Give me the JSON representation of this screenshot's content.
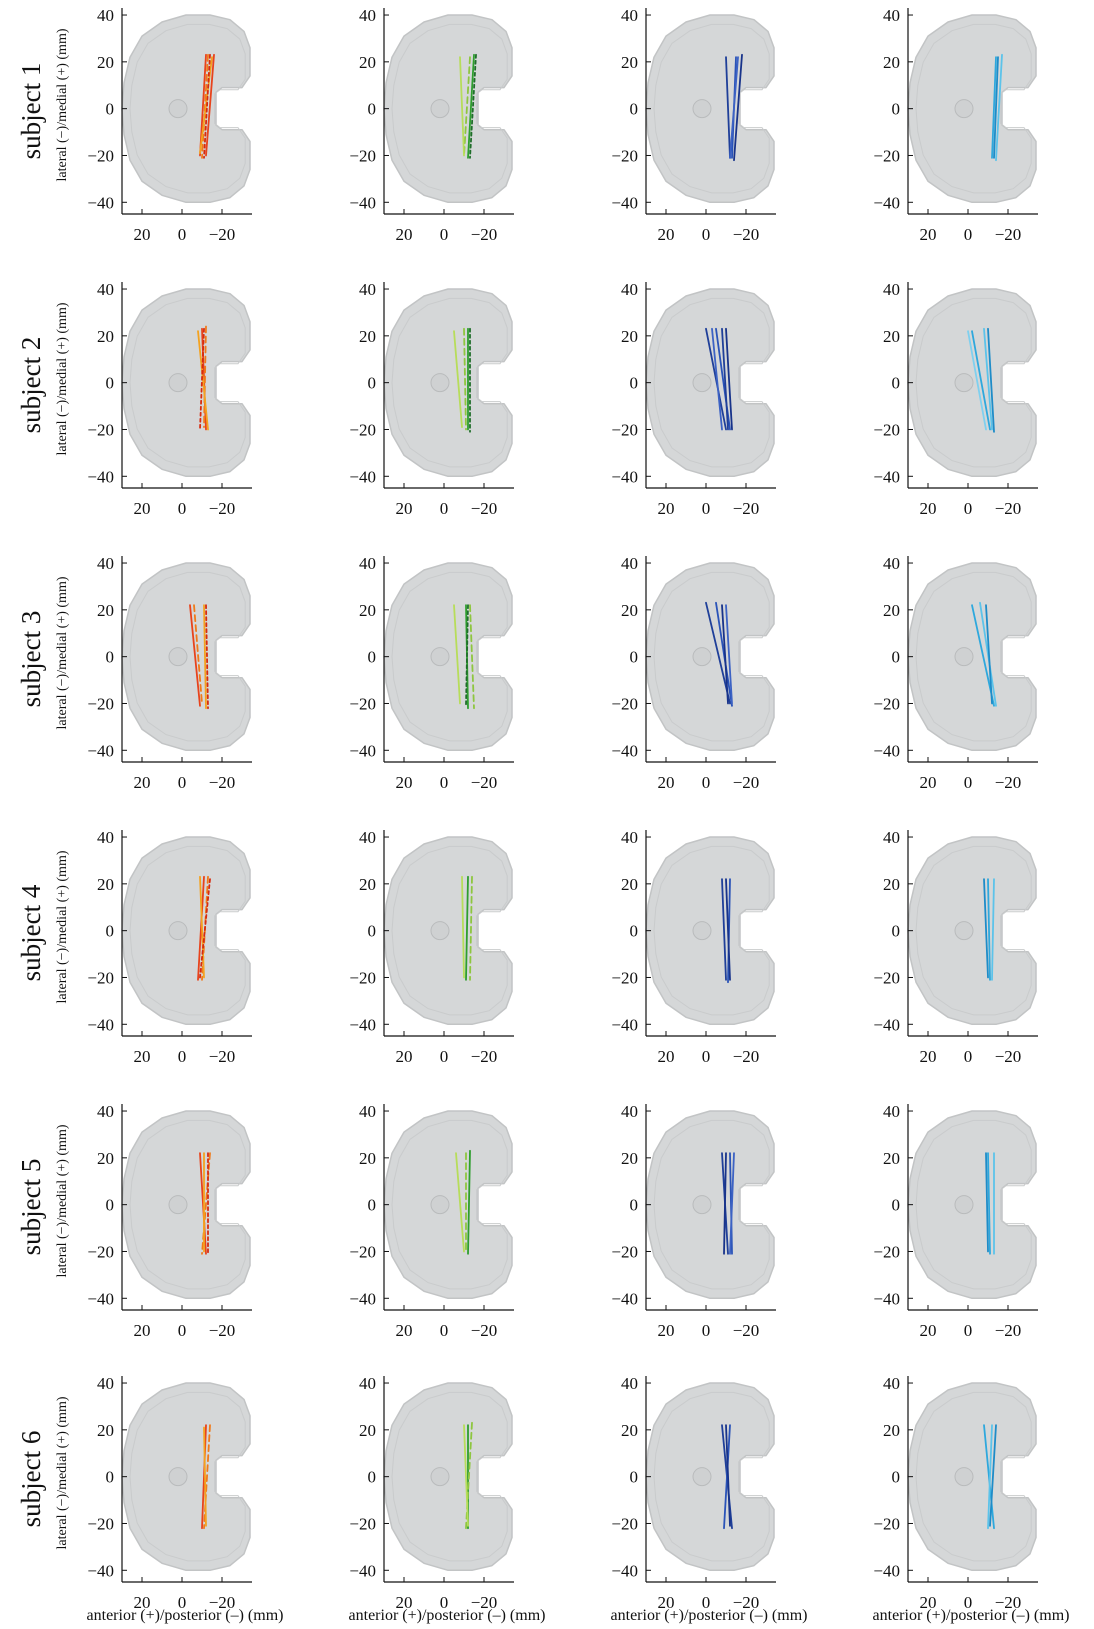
{
  "figure": {
    "row_labels": [
      "subject 1",
      "subject 2",
      "subject 3",
      "subject 4",
      "subject 5",
      "subject 6"
    ],
    "y_axis_label": "lateral (−)/medial (+) (mm)",
    "x_axis_label": "anterior (+)/posterior (–) (mm)",
    "x_tick_labels": [
      "20",
      "0",
      "−20"
    ],
    "y_tick_labels": [
      "40",
      "20",
      "0",
      "−20",
      "−40"
    ]
  },
  "colors": {
    "implant_fill": "#d5d7d8",
    "implant_edge": "#c2c4c5",
    "axis": "#111111",
    "col1": [
      "#e8431c",
      "#f07a1a",
      "#f4a21f",
      "#d62b10"
    ],
    "col2": [
      "#2e9e2e",
      "#8ec63f",
      "#b7dd5a",
      "#1f6e2a"
    ],
    "col3": [
      "#1f3f99",
      "#2a53b8",
      "#18338a",
      "#3c62c4"
    ],
    "col4": [
      "#2ea8dd",
      "#5cc3ea",
      "#1e8cc8",
      "#7fd0ef"
    ]
  },
  "chart_data": {
    "type": "line",
    "layout": "grid of 6 rows (subjects) by 4 columns; each panel shows line segments over a tibial implant outline",
    "xlim": [
      30,
      -35
    ],
    "ylim": [
      -45,
      43
    ],
    "x_reversed": true,
    "xticks": [
      20,
      0,
      -20
    ],
    "yticks": [
      40,
      20,
      0,
      -20,
      -40
    ],
    "xlabel": "anterior (+)/posterior (–) (mm)",
    "ylabel": "lateral (−)/medial (+) (mm)",
    "grid": false,
    "panels": [
      {
        "row": 1,
        "col": 1,
        "segments": [
          [
            -12,
            23,
            -9,
            -20
          ],
          [
            -13,
            23,
            -10,
            -21
          ],
          [
            -15,
            22,
            -9,
            -19
          ],
          [
            -14,
            23,
            -11,
            -21
          ],
          [
            -16,
            23,
            -12,
            -20
          ]
        ]
      },
      {
        "row": 1,
        "col": 2,
        "segments": [
          [
            -15,
            23,
            -12,
            -21
          ],
          [
            -13,
            22,
            -10,
            -20
          ],
          [
            -8,
            22,
            -10,
            -20
          ],
          [
            -16,
            23,
            -13,
            -21
          ]
        ]
      },
      {
        "row": 1,
        "col": 3,
        "segments": [
          [
            -10,
            22,
            -12,
            -21
          ],
          [
            -15,
            22,
            -13,
            -21
          ],
          [
            -18,
            23,
            -14,
            -22
          ],
          [
            -16,
            22,
            -12,
            -21
          ]
        ]
      },
      {
        "row": 1,
        "col": 4,
        "segments": [
          [
            -14,
            22,
            -12,
            -21
          ],
          [
            -17,
            23,
            -14,
            -22
          ],
          [
            -15,
            22,
            -13,
            -21
          ]
        ]
      },
      {
        "row": 2,
        "col": 1,
        "segments": [
          [
            -10,
            23,
            -12,
            -20
          ],
          [
            -12,
            24,
            -11,
            -19
          ],
          [
            -8,
            22,
            -13,
            -20
          ],
          [
            -11,
            23,
            -9,
            -20
          ]
        ]
      },
      {
        "row": 2,
        "col": 2,
        "segments": [
          [
            -12,
            23,
            -12,
            -20
          ],
          [
            -10,
            23,
            -11,
            -20
          ],
          [
            -5,
            22,
            -9,
            -19
          ],
          [
            -13,
            23,
            -13,
            -21
          ]
        ]
      },
      {
        "row": 2,
        "col": 3,
        "segments": [
          [
            0,
            23,
            -10,
            -20
          ],
          [
            -5,
            23,
            -12,
            -20
          ],
          [
            -10,
            23,
            -13,
            -20
          ],
          [
            -3,
            23,
            -8,
            -20
          ],
          [
            -8,
            23,
            -11,
            -20
          ]
        ]
      },
      {
        "row": 2,
        "col": 4,
        "segments": [
          [
            -2,
            22,
            -11,
            -20
          ],
          [
            -8,
            23,
            -12,
            -20
          ],
          [
            -10,
            23,
            -13,
            -21
          ],
          [
            0,
            22,
            -9,
            -20
          ]
        ]
      },
      {
        "row": 3,
        "col": 1,
        "segments": [
          [
            -4,
            22,
            -9,
            -21
          ],
          [
            -6,
            22,
            -10,
            -20
          ],
          [
            -11,
            22,
            -12,
            -22
          ],
          [
            -12,
            22,
            -13,
            -22
          ]
        ]
      },
      {
        "row": 3,
        "col": 2,
        "segments": [
          [
            -11,
            22,
            -12,
            -22
          ],
          [
            -13,
            22,
            -15,
            -22
          ],
          [
            -5,
            22,
            -8,
            -20
          ],
          [
            -12,
            22,
            -11,
            -21
          ]
        ]
      },
      {
        "row": 3,
        "col": 3,
        "segments": [
          [
            0,
            23,
            -12,
            -20
          ],
          [
            -5,
            23,
            -13,
            -21
          ],
          [
            -8,
            22,
            -11,
            -20
          ],
          [
            -10,
            22,
            -13,
            -20
          ]
        ]
      },
      {
        "row": 3,
        "col": 4,
        "segments": [
          [
            -2,
            22,
            -13,
            -21
          ],
          [
            -6,
            23,
            -14,
            -21
          ],
          [
            -9,
            22,
            -12,
            -20
          ]
        ]
      },
      {
        "row": 4,
        "col": 1,
        "segments": [
          [
            -11,
            23,
            -8,
            -21
          ],
          [
            -13,
            23,
            -10,
            -21
          ],
          [
            -9,
            23,
            -11,
            -20
          ],
          [
            -14,
            22,
            -9,
            -20
          ]
        ]
      },
      {
        "row": 4,
        "col": 2,
        "segments": [
          [
            -12,
            23,
            -11,
            -21
          ],
          [
            -14,
            23,
            -13,
            -21
          ],
          [
            -9,
            23,
            -10,
            -20
          ]
        ]
      },
      {
        "row": 4,
        "col": 3,
        "segments": [
          [
            -8,
            22,
            -10,
            -21
          ],
          [
            -12,
            22,
            -11,
            -22
          ],
          [
            -10,
            22,
            -12,
            -21
          ]
        ]
      },
      {
        "row": 4,
        "col": 4,
        "segments": [
          [
            -10,
            22,
            -11,
            -21
          ],
          [
            -13,
            22,
            -12,
            -21
          ],
          [
            -8,
            22,
            -10,
            -20
          ]
        ]
      },
      {
        "row": 5,
        "col": 1,
        "segments": [
          [
            -9,
            22,
            -12,
            -21
          ],
          [
            -14,
            22,
            -10,
            -21
          ],
          [
            -11,
            22,
            -11,
            -20
          ],
          [
            -13,
            22,
            -13,
            -21
          ]
        ]
      },
      {
        "row": 5,
        "col": 2,
        "segments": [
          [
            -13,
            23,
            -12,
            -21
          ],
          [
            -11,
            22,
            -11,
            -20
          ],
          [
            -6,
            22,
            -10,
            -20
          ]
        ]
      },
      {
        "row": 5,
        "col": 3,
        "segments": [
          [
            -8,
            22,
            -11,
            -21
          ],
          [
            -12,
            22,
            -13,
            -21
          ],
          [
            -10,
            22,
            -9,
            -21
          ],
          [
            -14,
            22,
            -12,
            -21
          ]
        ]
      },
      {
        "row": 5,
        "col": 4,
        "segments": [
          [
            -10,
            22,
            -11,
            -21
          ],
          [
            -13,
            22,
            -13,
            -21
          ],
          [
            -9,
            22,
            -10,
            -20
          ]
        ]
      },
      {
        "row": 6,
        "col": 1,
        "segments": [
          [
            -12,
            22,
            -10,
            -22
          ],
          [
            -14,
            22,
            -11,
            -22
          ],
          [
            -11,
            21,
            -12,
            -21
          ]
        ]
      },
      {
        "row": 6,
        "col": 2,
        "segments": [
          [
            -12,
            22,
            -12,
            -22
          ],
          [
            -14,
            23,
            -11,
            -22
          ],
          [
            -10,
            22,
            -12,
            -21
          ]
        ]
      },
      {
        "row": 6,
        "col": 3,
        "segments": [
          [
            -8,
            22,
            -13,
            -22
          ],
          [
            -12,
            22,
            -9,
            -22
          ],
          [
            -10,
            22,
            -12,
            -21
          ]
        ]
      },
      {
        "row": 6,
        "col": 4,
        "segments": [
          [
            -8,
            22,
            -13,
            -22
          ],
          [
            -12,
            22,
            -10,
            -22
          ],
          [
            -14,
            22,
            -11,
            -21
          ]
        ]
      }
    ]
  }
}
